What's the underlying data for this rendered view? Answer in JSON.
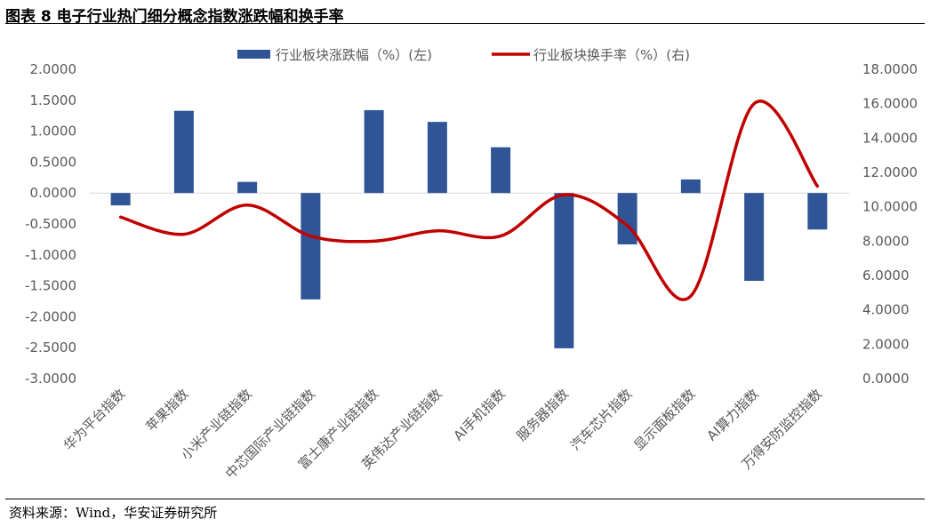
{
  "header": {
    "title": "图表 8 电子行业热门细分概念指数涨跌幅和换手率"
  },
  "footer": {
    "source": "资料来源：Wind，华安证券研究所"
  },
  "chart_data": {
    "type": "bar+line",
    "categories": [
      "华为平台指数",
      "苹果指数",
      "小米产业链指数",
      "中芯国际产业链指数",
      "富士康产业链指数",
      "英伟达产业链指数",
      "AI手机指数",
      "服务器指数",
      "汽车芯片指数",
      "显示面板指数",
      "AI算力指数",
      "万得安防监控指数"
    ],
    "series": [
      {
        "name": "行业板块涨跌幅（%）(左)",
        "type": "bar",
        "axis": "left",
        "color": "#2F5597",
        "values": [
          -0.2,
          1.33,
          0.18,
          -1.72,
          1.34,
          1.15,
          0.74,
          -2.51,
          -0.83,
          0.22,
          -1.42,
          -0.59
        ]
      },
      {
        "name": "行业板块换手率（%）(右)",
        "type": "line",
        "axis": "right",
        "color": "#C00000",
        "values": [
          9.4,
          8.4,
          10.1,
          8.3,
          8.0,
          8.6,
          8.3,
          10.7,
          8.9,
          4.8,
          16.0,
          11.2
        ]
      }
    ],
    "y_left": {
      "min": -3,
      "max": 2,
      "step": 0.5,
      "ticks": [
        "2.0000",
        "1.5000",
        "1.0000",
        "0.5000",
        "0.0000",
        "-0.5000",
        "-1.0000",
        "-1.5000",
        "-2.0000",
        "-2.5000",
        "-3.0000"
      ]
    },
    "y_right": {
      "min": 0,
      "max": 18,
      "step": 2,
      "ticks": [
        "18.0000",
        "16.0000",
        "14.0000",
        "12.0000",
        "10.0000",
        "8.0000",
        "6.0000",
        "4.0000",
        "2.0000",
        "0.0000"
      ]
    },
    "legend": "top-center",
    "grid": false
  }
}
